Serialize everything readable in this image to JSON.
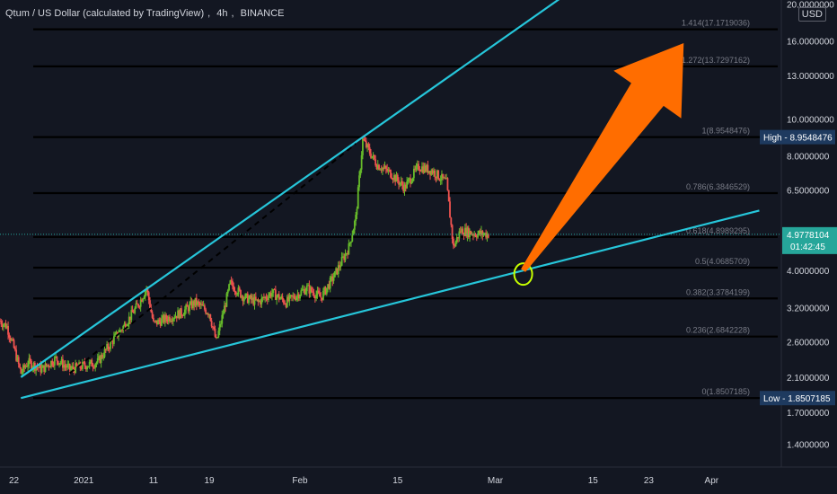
{
  "header": {
    "symbol": "Qtum / US Dollar (calculated by TradingView)",
    "interval": "4h",
    "exchange": "BINANCE",
    "currency": "USD"
  },
  "chart_data": {
    "type": "candlestick",
    "y_scale": "log",
    "y_range": [
      1.22,
      20.5
    ],
    "y_ticks": [
      {
        "value": 20,
        "label": "20.0000000"
      },
      {
        "value": 16,
        "label": "16.0000000"
      },
      {
        "value": 13,
        "label": "13.0000000"
      },
      {
        "value": 10,
        "label": "10.0000000"
      },
      {
        "value": 8,
        "label": "8.0000000"
      },
      {
        "value": 6.5,
        "label": "6.5000000"
      },
      {
        "value": 5,
        "label": "5.0000000"
      },
      {
        "value": 4,
        "label": "4.0000000"
      },
      {
        "value": 3.2,
        "label": "3.2000000"
      },
      {
        "value": 2.6,
        "label": "2.6000000"
      },
      {
        "value": 2.1,
        "label": "2.1000000"
      },
      {
        "value": 1.7,
        "label": "1.7000000"
      },
      {
        "value": 1.4,
        "label": "1.4000000"
      }
    ],
    "x_range": [
      "2020-12-20",
      "2021-04-11"
    ],
    "x_ticks": [
      {
        "date": "2020-12-22",
        "label": "22"
      },
      {
        "date": "2021-01-01",
        "label": "2021"
      },
      {
        "date": "2021-01-11",
        "label": "11"
      },
      {
        "date": "2021-01-19",
        "label": "19"
      },
      {
        "date": "2021-02-01",
        "label": "Feb"
      },
      {
        "date": "2021-02-15",
        "label": "15"
      },
      {
        "date": "2021-03-01",
        "label": "Mar"
      },
      {
        "date": "2021-03-15",
        "label": "15"
      },
      {
        "date": "2021-03-23",
        "label": "23"
      },
      {
        "date": "2021-04-01",
        "label": "Apr"
      }
    ],
    "price_path": [
      [
        "2020-12-20",
        2.95
      ],
      [
        "2020-12-21",
        2.85
      ],
      [
        "2020-12-22",
        2.5
      ],
      [
        "2020-12-23",
        2.15
      ],
      [
        "2020-12-24",
        2.3
      ],
      [
        "2020-12-26",
        2.2
      ],
      [
        "2020-12-28",
        2.35
      ],
      [
        "2020-12-30",
        2.2
      ],
      [
        "2021-01-01",
        2.25
      ],
      [
        "2021-01-03",
        2.3
      ],
      [
        "2021-01-05",
        2.6
      ],
      [
        "2021-01-07",
        2.9
      ],
      [
        "2021-01-09",
        3.3
      ],
      [
        "2021-01-10",
        3.6
      ],
      [
        "2021-01-11",
        2.9
      ],
      [
        "2021-01-13",
        3.0
      ],
      [
        "2021-01-15",
        3.1
      ],
      [
        "2021-01-17",
        3.3
      ],
      [
        "2021-01-19",
        3.1
      ],
      [
        "2021-01-20",
        2.6
      ],
      [
        "2021-01-22",
        3.7
      ],
      [
        "2021-01-24",
        3.4
      ],
      [
        "2021-01-26",
        3.3
      ],
      [
        "2021-01-28",
        3.5
      ],
      [
        "2021-01-30",
        3.3
      ],
      [
        "2021-02-02",
        3.6
      ],
      [
        "2021-02-04",
        3.4
      ],
      [
        "2021-02-06",
        3.9
      ],
      [
        "2021-02-08",
        4.6
      ],
      [
        "2021-02-09",
        5.5
      ],
      [
        "2021-02-10",
        8.8
      ],
      [
        "2021-02-12",
        7.6
      ],
      [
        "2021-02-14",
        7.2
      ],
      [
        "2021-02-16",
        6.6
      ],
      [
        "2021-02-18",
        7.5
      ],
      [
        "2021-02-20",
        7.3
      ],
      [
        "2021-02-22",
        6.8
      ],
      [
        "2021-02-23",
        4.6
      ],
      [
        "2021-02-24",
        5.1
      ],
      [
        "2021-02-26",
        5.0
      ],
      [
        "2021-02-28",
        4.98
      ]
    ],
    "last_price": {
      "value": 4.9778104,
      "label": "4.9778104",
      "countdown": "01:42:45",
      "color": "#26a69a"
    },
    "fib_levels": [
      {
        "ratio": "1.414",
        "value": 17.1719036,
        "label": "1.414(17.1719036)"
      },
      {
        "ratio": "1.272",
        "value": 13.7297162,
        "label": "1.272(13.7297162)"
      },
      {
        "ratio": "1",
        "value": 8.9548476,
        "label": "1(8.9548476)"
      },
      {
        "ratio": "0.786",
        "value": 6.3846529,
        "label": "0.786(6.3846529)"
      },
      {
        "ratio": "0.618",
        "value": 4.8989295,
        "label": "0.618(4.8989295)"
      },
      {
        "ratio": "0.5",
        "value": 4.0685709,
        "label": "0.5(4.0685709)"
      },
      {
        "ratio": "0.382",
        "value": 3.3784199,
        "label": "0.382(3.3784199)"
      },
      {
        "ratio": "0.236",
        "value": 2.6842228,
        "label": "0.236(2.6842228)"
      },
      {
        "ratio": "0",
        "value": 1.8507185,
        "label": "0(1.8507185)"
      }
    ],
    "high_marker": {
      "label": "High",
      "value_label": "8.9548476",
      "value": 8.9548476
    },
    "low_marker": {
      "label": "Low",
      "value_label": "1.8507185",
      "value": 1.8507185
    },
    "trendlines": {
      "upper": {
        "from": [
          "2020-12-23",
          2.1
        ],
        "to": [
          "2021-02-10",
          8.9548476
        ],
        "color": "#26c6da"
      },
      "lower": {
        "from": [
          "2020-12-23",
          1.8507185
        ],
        "to": [
          "2021-03-05",
          4.0
        ],
        "color": "#26c6da"
      },
      "dashed": {
        "from": [
          "2020-12-30",
          2.15
        ],
        "to": [
          "2021-02-09",
          8.6
        ],
        "color": "#000000"
      }
    },
    "circle_marker": {
      "at": [
        "2021-03-05",
        4.0
      ],
      "color": "#c6ff00"
    },
    "arrow": {
      "from": [
        "2021-03-05",
        4.0
      ],
      "to": [
        "2021-03-28",
        15.8
      ],
      "color": "#ff6d00"
    },
    "colors": {
      "up": "#26a69a",
      "up_candle": "#66bb2a",
      "down": "#ef5350",
      "background": "#131722",
      "text": "#d1d4dc",
      "fib_line": "#000000"
    }
  }
}
